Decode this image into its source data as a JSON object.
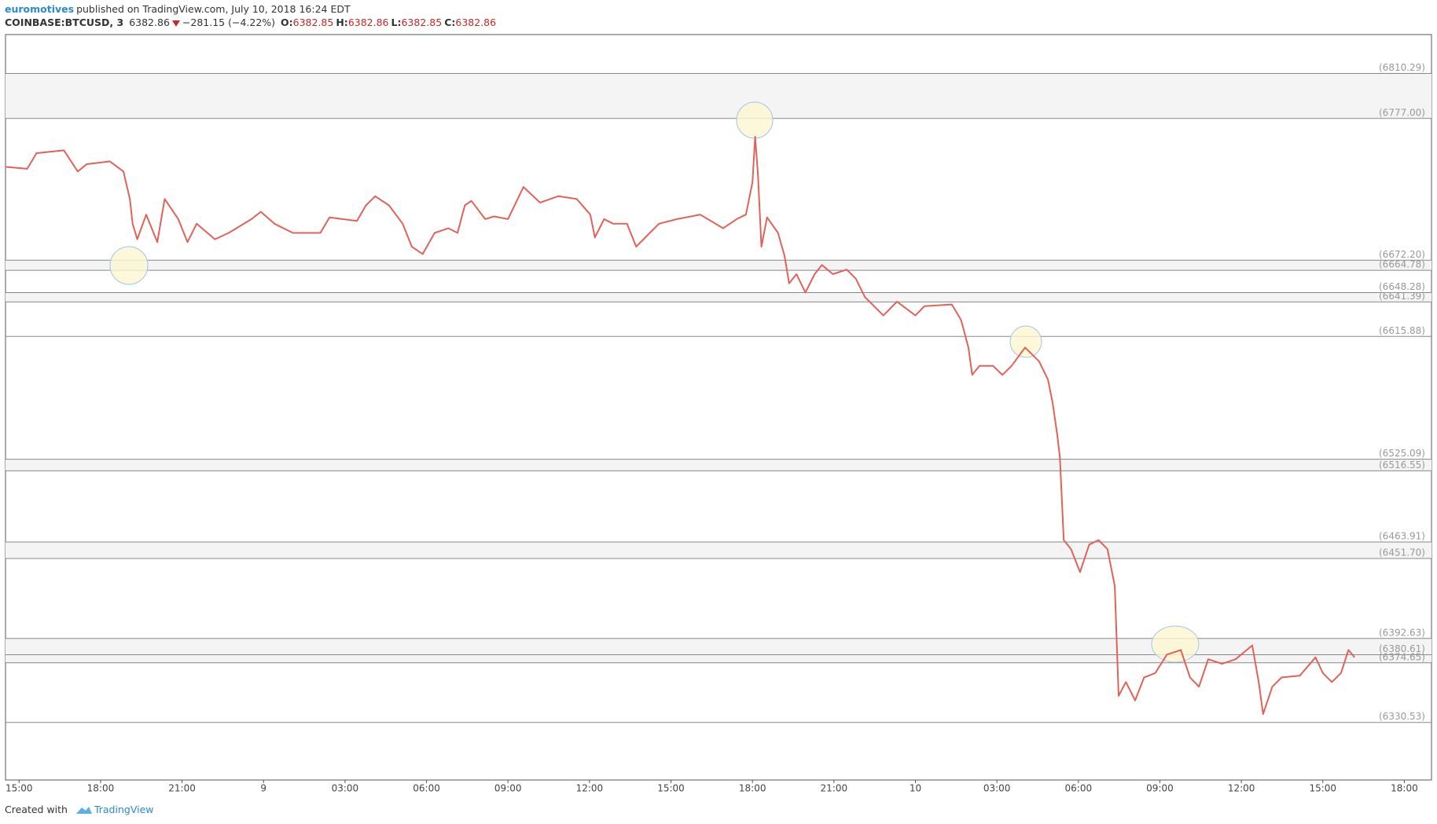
{
  "header": {
    "author": "euromotives",
    "published": "published on TradingView.com, July 10, 2018 16:24 EDT",
    "symbol": "COINBASE:BTCUSD, 3",
    "price": "6382.86",
    "change": "−281.15 (−4.22%)",
    "ohlc": [
      {
        "label": "O:",
        "value": "6382.85"
      },
      {
        "label": "H:",
        "value": "6382.86"
      },
      {
        "label": "L:",
        "value": "6382.85"
      },
      {
        "label": "C:",
        "value": "6382.86"
      }
    ]
  },
  "footer": {
    "created": "Created with",
    "brand": "TradingView"
  },
  "chart_data": {
    "type": "line",
    "color": "#e0625a",
    "x": [
      14.49,
      15.3,
      15.64,
      16.65,
      17.16,
      17.49,
      18.34,
      18.84,
      19.08,
      19.18,
      19.35,
      19.68,
      20.09,
      20.36,
      20.86,
      21.2,
      21.54,
      22.21,
      22.72,
      23.56,
      23.9,
      24.4,
      25.08,
      26.09,
      26.43,
      27.44,
      27.77,
      28.11,
      28.62,
      29.12,
      29.46,
      29.86,
      30.3,
      30.81,
      31.14,
      31.41,
      31.65,
      32.16,
      32.49,
      33.0,
      33.57,
      34.18,
      34.85,
      35.53,
      36.03,
      36.2,
      36.54,
      36.87,
      37.38,
      37.72,
      38.22,
      38.56,
      39.23,
      40.08,
      40.92,
      41.42,
      41.76,
      42.0,
      42.1,
      42.2,
      42.33,
      42.54,
      42.94,
      43.18,
      43.35,
      43.62,
      43.95,
      44.29,
      44.56,
      44.96,
      45.47,
      45.81,
      46.14,
      46.82,
      47.32,
      48.0,
      48.33,
      49.34,
      49.68,
      49.95,
      50.09,
      50.36,
      50.86,
      51.2,
      51.54,
      52.04,
      52.55,
      52.88,
      53.05,
      53.22,
      53.32,
      53.46,
      53.73,
      54.06,
      54.4,
      54.74,
      55.07,
      55.34,
      55.48,
      55.75,
      56.09,
      56.42,
      56.83,
      57.26,
      57.77,
      58.11,
      58.44,
      58.78,
      59.29,
      59.79,
      60.4,
      60.64,
      60.8,
      61.14,
      61.48,
      62.15,
      62.73,
      63.0,
      63.33,
      63.67,
      63.94,
      64.17
    ],
    "values": [
      6741.2,
      6739.8,
      6751.3,
      6753.4,
      6737.8,
      6743.2,
      6745.3,
      6737.8,
      6717.5,
      6699.2,
      6687.7,
      6705.9,
      6685.6,
      6717.5,
      6702.6,
      6685.6,
      6699.2,
      6687.7,
      6692.4,
      6702.6,
      6708.0,
      6699.2,
      6692.4,
      6692.4,
      6703.9,
      6701.2,
      6712.7,
      6719.5,
      6712.7,
      6699.2,
      6682.2,
      6676.8,
      6692.4,
      6695.8,
      6692.4,
      6712.7,
      6716.1,
      6702.6,
      6704.6,
      6702.6,
      6726.3,
      6714.8,
      6719.5,
      6717.5,
      6705.9,
      6689.0,
      6702.6,
      6699.2,
      6699.2,
      6682.2,
      6692.4,
      6699.2,
      6702.6,
      6705.9,
      6695.8,
      6702.6,
      6705.9,
      6729.7,
      6763.5,
      6736.4,
      6682.2,
      6703.9,
      6692.4,
      6675.5,
      6655.1,
      6661.9,
      6648.4,
      6661.9,
      6668.7,
      6661.9,
      6665.3,
      6658.5,
      6645.0,
      6631.4,
      6641.6,
      6631.4,
      6638.2,
      6639.5,
      6628.0,
      6607.7,
      6587.4,
      6594.1,
      6594.1,
      6587.4,
      6594.1,
      6607.7,
      6597.5,
      6584.0,
      6567.0,
      6543.3,
      6526.4,
      6465.4,
      6458.6,
      6441.7,
      6462.0,
      6465.4,
      6458.6,
      6431.5,
      6350.2,
      6360.4,
      6346.8,
      6363.8,
      6367.1,
      6380.7,
      6384.1,
      6363.8,
      6357.0,
      6377.3,
      6373.9,
      6377.3,
      6387.5,
      6360.4,
      6336.7,
      6357.0,
      6363.8,
      6365.1,
      6378.7,
      6367.1,
      6360.4,
      6367.1,
      6384.1,
      6378.7
    ],
    "xlim": [
      14.5,
      67
    ],
    "xticks": [
      {
        "value": 15,
        "label": "15:00"
      },
      {
        "value": 18,
        "label": "18:00"
      },
      {
        "value": 21,
        "label": "21:00"
      },
      {
        "value": 24,
        "label": "9"
      },
      {
        "value": 27,
        "label": "03:00"
      },
      {
        "value": 30,
        "label": "06:00"
      },
      {
        "value": 33,
        "label": "09:00"
      },
      {
        "value": 36,
        "label": "12:00"
      },
      {
        "value": 39,
        "label": "15:00"
      },
      {
        "value": 42,
        "label": "18:00"
      },
      {
        "value": 45,
        "label": "21:00"
      },
      {
        "value": 48,
        "label": "10"
      },
      {
        "value": 51,
        "label": "03:00"
      },
      {
        "value": 54,
        "label": "06:00"
      },
      {
        "value": 57,
        "label": "09:00"
      },
      {
        "value": 60,
        "label": "12:00"
      },
      {
        "value": 63,
        "label": "15:00"
      },
      {
        "value": 66,
        "label": "18:00"
      }
    ],
    "ylim": [
      6288,
      6839
    ],
    "levels": [
      {
        "value": 6810.29,
        "label": "(6810.29)"
      },
      {
        "value": 6777.0,
        "label": "(6777.00)"
      },
      {
        "value": 6672.2,
        "label": "(6672.20)"
      },
      {
        "value": 6664.78,
        "label": "(6664.78)"
      },
      {
        "value": 6648.28,
        "label": "(6648.28)"
      },
      {
        "value": 6641.39,
        "label": "(6641.39)"
      },
      {
        "value": 6615.88,
        "label": "(6615.88)"
      },
      {
        "value": 6525.09,
        "label": "(6525.09)"
      },
      {
        "value": 6516.55,
        "label": "(6516.55)"
      },
      {
        "value": 6463.91,
        "label": "(6463.91)"
      },
      {
        "value": 6451.7,
        "label": "(6451.70)"
      },
      {
        "value": 6392.63,
        "label": "(6392.63)"
      },
      {
        "value": 6380.61,
        "label": "(6380.61)"
      },
      {
        "value": 6374.65,
        "label": "(6374.65)"
      },
      {
        "value": 6330.53,
        "label": "(6330.53)"
      }
    ]
  }
}
